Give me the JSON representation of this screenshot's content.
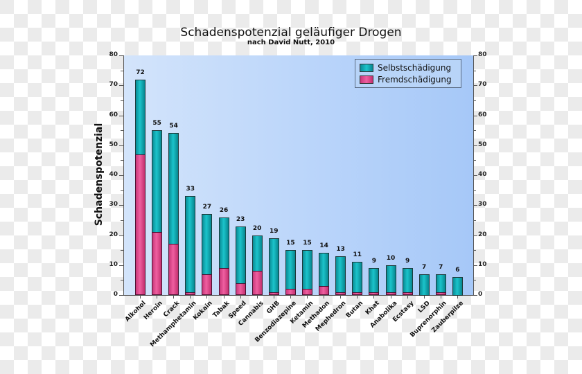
{
  "chart_data": {
    "type": "bar",
    "stacked": true,
    "title": "Schadenspotenzial geläufiger Drogen",
    "subtitle": "nach David Nutt, 2010",
    "xlabel": "",
    "ylabel": "Schadenspotenzial",
    "ylim": [
      0,
      80
    ],
    "yticks": [
      0,
      10,
      20,
      30,
      40,
      50,
      60,
      70,
      80
    ],
    "secondary_y_axis": true,
    "grid": false,
    "legend_position": "top-right",
    "categories": [
      "Alkohol",
      "Heroin",
      "Crack",
      "Methamphetamin",
      "Kokain",
      "Tabak",
      "Speed",
      "Cannabis",
      "GHB",
      "Benzodiazepine",
      "Ketamin",
      "Methadon",
      "Mephedron",
      "Butan",
      "Khat",
      "Anabolika",
      "Ecstasy",
      "LSD",
      "Buprenorphin",
      "Zauberpilze"
    ],
    "totals": [
      72,
      55,
      54,
      33,
      27,
      26,
      23,
      20,
      19,
      15,
      15,
      14,
      13,
      11,
      9,
      10,
      9,
      7,
      7,
      6
    ],
    "series": [
      {
        "name": "Fremdschädigung",
        "color": "#e04a8c",
        "values": [
          47,
          21,
          17,
          1,
          7,
          9,
          4,
          8,
          1,
          2,
          2,
          3,
          1,
          1,
          1,
          1,
          1,
          0,
          1,
          0
        ]
      },
      {
        "name": "Selbstschädigung",
        "color": "#0fa7b0",
        "values": [
          25,
          34,
          37,
          32,
          20,
          17,
          19,
          12,
          18,
          13,
          13,
          11,
          12,
          10,
          8,
          9,
          8,
          7,
          6,
          6
        ]
      }
    ]
  },
  "legend": {
    "items": [
      {
        "label": "Selbstschädigung",
        "color": "#0fa7b0"
      },
      {
        "label": "Fremdschädigung",
        "color": "#e04a8c"
      }
    ]
  }
}
